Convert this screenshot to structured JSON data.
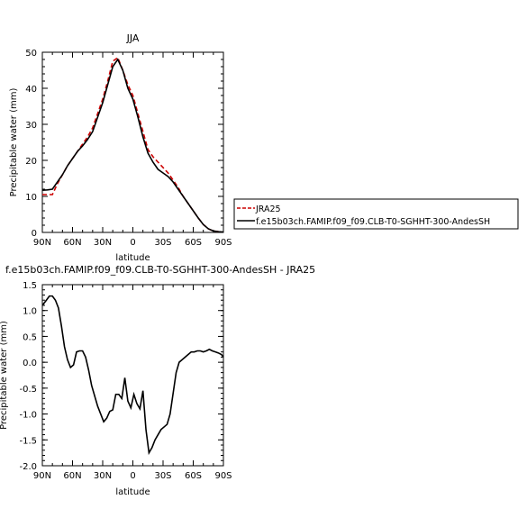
{
  "chart_data": [
    {
      "type": "line",
      "title": "JJA",
      "xlabel": "latitude",
      "ylabel": "Precipitable water (mm)",
      "xlim": [
        90,
        -90
      ],
      "ylim": [
        0,
        50
      ],
      "x_ticks": [
        90,
        60,
        30,
        0,
        -30,
        -60,
        -90
      ],
      "x_tick_labels": [
        "90N",
        "60N",
        "30N",
        "0",
        "30S",
        "60S",
        "90S"
      ],
      "y_ticks": [
        0,
        10,
        20,
        30,
        40,
        50
      ],
      "y_tick_labels": [
        "0",
        "10",
        "20",
        "30",
        "40",
        "50"
      ],
      "legend": {
        "placement": "right",
        "entries": [
          {
            "label": "JRA25",
            "color": "#cc0000",
            "dashed": true
          },
          {
            "label": "f.e15b03ch.FAMIP.f09_f09.CLB-T0-SGHHT-300-AndesSH",
            "color": "#000000",
            "dashed": false
          }
        ]
      },
      "series": [
        {
          "name": "JRA25",
          "color": "#cc0000",
          "dashed": true,
          "x": [
            90,
            85,
            80,
            75,
            70,
            65,
            60,
            55,
            50,
            45,
            40,
            35,
            30,
            25,
            20,
            15,
            10,
            5,
            0,
            -5,
            -10,
            -15,
            -20,
            -25,
            -30,
            -35,
            -40,
            -45,
            -50,
            -55,
            -60,
            -65,
            -70,
            -75,
            -80,
            -85,
            -90
          ],
          "values": [
            10.5,
            10.5,
            10.5,
            13.5,
            16,
            18.5,
            20.5,
            22.5,
            24.5,
            26.5,
            29,
            33,
            37,
            42,
            47.5,
            48.5,
            45,
            41,
            38,
            33,
            28,
            23,
            21,
            19.5,
            18,
            16.5,
            14.5,
            12.5,
            10,
            8,
            6,
            4,
            2.2,
            1,
            0.4,
            0.2,
            0
          ]
        },
        {
          "name": "f.e15b03ch.FAMIP.f09_f09.CLB-T0-SGHHT-300-AndesSH",
          "color": "#000000",
          "dashed": false,
          "x": [
            90,
            85,
            80,
            75,
            70,
            65,
            60,
            55,
            50,
            45,
            40,
            35,
            30,
            25,
            20,
            15,
            10,
            5,
            0,
            -5,
            -10,
            -15,
            -20,
            -25,
            -30,
            -35,
            -40,
            -45,
            -50,
            -55,
            -60,
            -65,
            -70,
            -75,
            -80,
            -85,
            -90
          ],
          "values": [
            11.7,
            11.8,
            12,
            14,
            16,
            18.5,
            20.5,
            22.5,
            24,
            25.8,
            28,
            32,
            36,
            41,
            46,
            48,
            45,
            40,
            37,
            32,
            26.5,
            22,
            19.5,
            17.5,
            16.5,
            15.5,
            14,
            12,
            10,
            8,
            6,
            4,
            2.2,
            1,
            0.4,
            0.2,
            0.1
          ]
        }
      ]
    },
    {
      "type": "line",
      "title": "f.e15b03ch.FAMIP.f09_f09.CLB-T0-SGHHT-300-AndesSH - JRA25",
      "xlabel": "latitude",
      "ylabel": "Precipitable water (mm)",
      "xlim": [
        90,
        -90
      ],
      "ylim": [
        -2.0,
        1.5
      ],
      "x_ticks": [
        90,
        60,
        30,
        0,
        -30,
        -60,
        -90
      ],
      "x_tick_labels": [
        "90N",
        "60N",
        "30N",
        "0",
        "30S",
        "60S",
        "90S"
      ],
      "y_ticks": [
        -2.0,
        -1.5,
        -1.0,
        -0.5,
        0.0,
        0.5,
        1.0,
        1.5
      ],
      "y_tick_labels": [
        "-2.0",
        "-1.5",
        "-1.0",
        "-0.5",
        "0.0",
        "0.5",
        "1.0",
        "1.5"
      ],
      "series": [
        {
          "color": "#000000",
          "dashed": false,
          "x": [
            90,
            86,
            83,
            80,
            77,
            74,
            71,
            68,
            65,
            62,
            59,
            56,
            53,
            50,
            47,
            44,
            41,
            38,
            35,
            32,
            29,
            26,
            23,
            20,
            17,
            14,
            11,
            8,
            5,
            2,
            -1,
            -4,
            -7,
            -10,
            -13,
            -16,
            -19,
            -22,
            -25,
            -28,
            -31,
            -34,
            -37,
            -40,
            -43,
            -46,
            -49,
            -52,
            -55,
            -58,
            -61,
            -64,
            -67,
            -70,
            -73,
            -76,
            -79,
            -82,
            -85,
            -88,
            -90
          ],
          "values": [
            1.1,
            1.2,
            1.28,
            1.28,
            1.2,
            1.05,
            0.7,
            0.3,
            0.05,
            -0.1,
            -0.05,
            0.2,
            0.22,
            0.22,
            0.1,
            -0.15,
            -0.45,
            -0.65,
            -0.85,
            -1.0,
            -1.15,
            -1.08,
            -0.95,
            -0.92,
            -0.62,
            -0.62,
            -0.7,
            -0.3,
            -0.75,
            -0.88,
            -0.62,
            -0.8,
            -0.9,
            -0.55,
            -1.3,
            -1.75,
            -1.65,
            -1.5,
            -1.4,
            -1.3,
            -1.25,
            -1.2,
            -1.0,
            -0.6,
            -0.2,
            0.0,
            0.05,
            0.1,
            0.15,
            0.2,
            0.2,
            0.22,
            0.22,
            0.2,
            0.22,
            0.25,
            0.22,
            0.2,
            0.18,
            0.15,
            0.1
          ]
        }
      ]
    }
  ]
}
